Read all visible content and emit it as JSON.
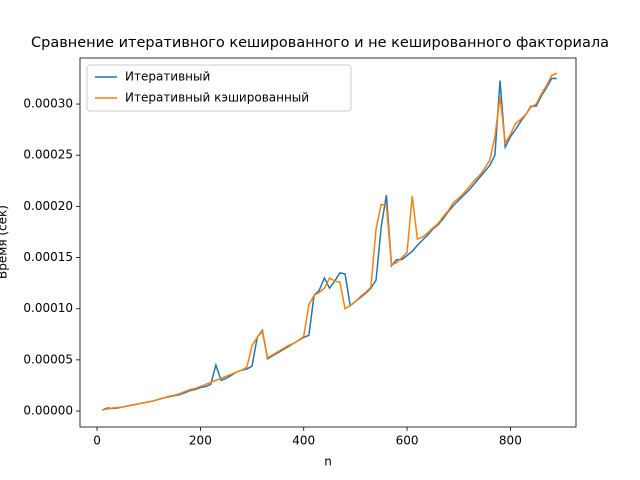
{
  "chart_data": {
    "type": "line",
    "title": "Сравнение итеративного кешированного и не кешированного факториала",
    "x_label": "n",
    "y_label": "Время (сек)",
    "xlim": [
      -33,
      927
    ],
    "ylim": [
      -1.56e-05,
      0.000345
    ],
    "xticks": [
      0,
      200,
      400,
      600,
      800
    ],
    "yticks": [
      {
        "value": 0,
        "label": "0.00000"
      },
      {
        "value": 5e-05,
        "label": "0.00005"
      },
      {
        "value": 0.0001,
        "label": "0.00010"
      },
      {
        "value": 0.00015,
        "label": "0.00015"
      },
      {
        "value": 0.0002,
        "label": "0.00020"
      },
      {
        "value": 0.00025,
        "label": "0.00025"
      },
      {
        "value": 0.0003,
        "label": "0.00030"
      }
    ],
    "legend": "upper left",
    "grid": false,
    "x": [
      10,
      20,
      30,
      40,
      50,
      60,
      70,
      80,
      90,
      100,
      110,
      120,
      130,
      140,
      150,
      160,
      170,
      180,
      190,
      200,
      210,
      220,
      230,
      240,
      250,
      260,
      270,
      280,
      290,
      300,
      310,
      320,
      330,
      340,
      350,
      360,
      370,
      380,
      390,
      400,
      410,
      420,
      430,
      440,
      450,
      460,
      470,
      480,
      490,
      500,
      510,
      520,
      530,
      540,
      550,
      560,
      570,
      580,
      590,
      600,
      610,
      620,
      630,
      640,
      650,
      660,
      670,
      680,
      690,
      700,
      710,
      720,
      730,
      740,
      750,
      760,
      770,
      780,
      790,
      800,
      810,
      820,
      830,
      840,
      850,
      860,
      870,
      880,
      890
    ],
    "series": [
      {
        "name": "Итеративный",
        "color": "#1f77b4",
        "values": [
          1e-06,
          3e-06,
          2.5e-06,
          3e-06,
          4e-06,
          5e-06,
          6e-06,
          7e-06,
          8e-06,
          9e-06,
          1e-05,
          1.15e-05,
          1.3e-05,
          1.4e-05,
          1.5e-05,
          1.6e-05,
          1.8e-05,
          2e-05,
          2.1e-05,
          2.3e-05,
          2.4e-05,
          2.6e-05,
          4.5e-05,
          3e-05,
          3.2e-05,
          3.5e-05,
          3.8e-05,
          4e-05,
          4.1e-05,
          4.4e-05,
          7.2e-05,
          7.9e-05,
          5.1e-05,
          5.4e-05,
          5.7e-05,
          6e-05,
          6.3e-05,
          6.6e-05,
          6.9e-05,
          7.2e-05,
          7.4e-05,
          0.000113,
          0.000118,
          0.00013,
          0.00012,
          0.000127,
          0.000135,
          0.000134,
          0.000103,
          0.000107,
          0.000111,
          0.000115,
          0.00012,
          0.000128,
          0.00018,
          0.000211,
          0.000142,
          0.000148,
          0.000148,
          0.000152,
          0.000156,
          0.000162,
          0.000167,
          0.000172,
          0.000178,
          0.000182,
          0.000188,
          0.000195,
          0.000201,
          0.000206,
          0.000211,
          0.000216,
          0.000222,
          0.000228,
          0.000234,
          0.00024,
          0.00025,
          0.000323,
          0.000258,
          0.000268,
          0.000275,
          0.000283,
          0.00029,
          0.000298,
          0.000298,
          0.000308,
          0.000316,
          0.000325,
          0.000325
        ]
      },
      {
        "name": "Итеративный кэшированный",
        "color": "#ff7f0e",
        "values": [
          1e-06,
          2e-06,
          3e-06,
          3.5e-06,
          4e-06,
          5e-06,
          6e-06,
          7e-06,
          8e-06,
          9e-06,
          1e-05,
          1.15e-05,
          1.3e-05,
          1.45e-05,
          1.55e-05,
          1.7e-05,
          1.9e-05,
          2.1e-05,
          2.2e-05,
          2.4e-05,
          2.6e-05,
          2.8e-05,
          3e-05,
          3.2e-05,
          3.4e-05,
          3.6e-05,
          3.8e-05,
          4e-05,
          4.3e-05,
          6.4e-05,
          7.2e-05,
          7.8e-05,
          5.2e-05,
          5.5e-05,
          5.8e-05,
          6.1e-05,
          6.4e-05,
          6.6e-05,
          6.9e-05,
          7.3e-05,
          0.000104,
          0.000113,
          0.000116,
          0.00012,
          0.00013,
          0.000127,
          0.000126,
          0.0001,
          0.000103,
          0.000107,
          0.000112,
          0.000116,
          0.000121,
          0.000178,
          0.000202,
          0.000201,
          0.000143,
          0.000145,
          0.00015,
          0.000155,
          0.00021,
          0.000168,
          0.00017,
          0.000174,
          0.000179,
          0.000183,
          0.00019,
          0.000196,
          0.000204,
          0.000208,
          0.000213,
          0.000219,
          0.000225,
          0.00023,
          0.000237,
          0.000245,
          0.000268,
          0.000307,
          0.000262,
          0.00027,
          0.000281,
          0.000285,
          0.00029,
          0.000297,
          0.0003,
          0.00031,
          0.000318,
          0.000328,
          0.00033
        ]
      }
    ]
  }
}
